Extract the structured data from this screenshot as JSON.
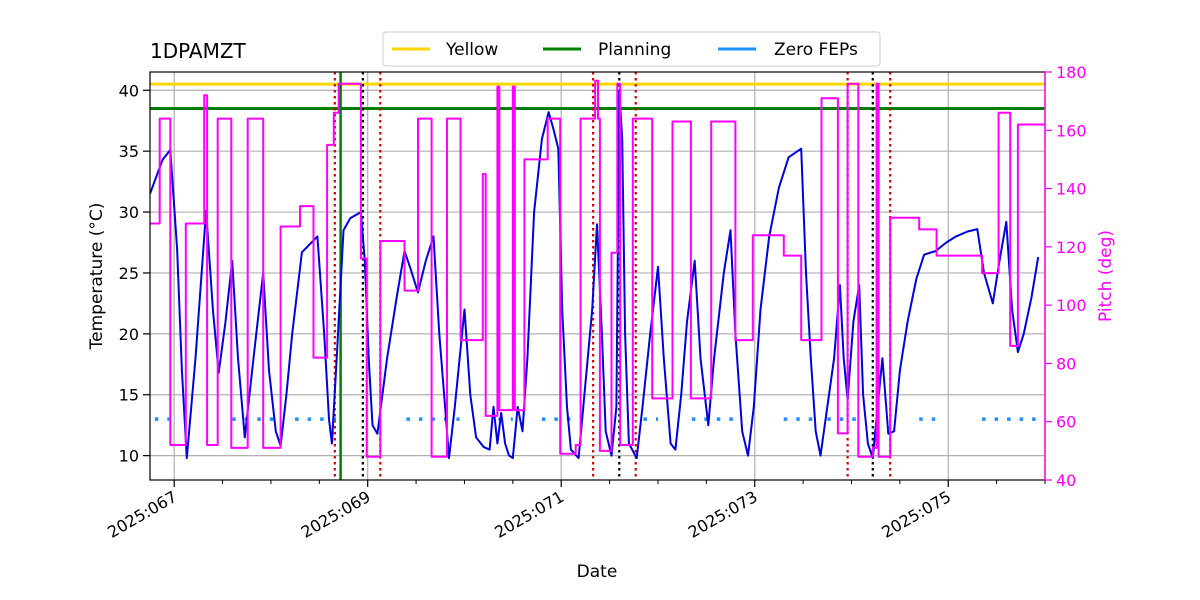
{
  "chart_data": {
    "type": "line",
    "title": "1DPAMZT",
    "xlabel": "Date",
    "ylabel_left": "Temperature ($^\\circ$C)",
    "ylabel_left_display": "Temperature (°C)",
    "ylabel_right": "Pitch (deg)",
    "xlim_day": [
      66.75,
      76.0
    ],
    "ylim_left": [
      8.0,
      41.5
    ],
    "ylim_right": [
      40,
      180
    ],
    "x_ticks": [
      {
        "day": 67,
        "label": "2025:067"
      },
      {
        "day": 69,
        "label": "2025:069"
      },
      {
        "day": 71,
        "label": "2025:071"
      },
      {
        "day": 73,
        "label": "2025:073"
      },
      {
        "day": 75,
        "label": "2025:075"
      }
    ],
    "y_left_ticks": [
      10,
      15,
      20,
      25,
      30,
      35,
      40
    ],
    "y_right_ticks": [
      40,
      60,
      80,
      100,
      120,
      140,
      160,
      180
    ],
    "grid": true,
    "legend_position": "top-center",
    "legend": [
      {
        "name": "Yellow",
        "color": "#ffd700",
        "style": "solid"
      },
      {
        "name": "Planning",
        "color": "#008000",
        "style": "solid"
      },
      {
        "name": "Zero FEPs",
        "color": "#1e90ff",
        "style": "solid"
      }
    ],
    "hlines": [
      {
        "name": "Yellow",
        "value": 40.5,
        "color": "#ffd700"
      },
      {
        "name": "Planning",
        "value": 38.5,
        "color": "#008000"
      }
    ],
    "zero_feps_level": 13.0,
    "zero_feps_segments": [
      [
        66.8,
        66.95
      ],
      [
        67.6,
        68.1
      ],
      [
        68.25,
        68.75
      ],
      [
        69.4,
        69.95
      ],
      [
        70.35,
        70.5
      ],
      [
        70.8,
        71.1
      ],
      [
        71.85,
        72.0
      ],
      [
        72.35,
        72.85
      ],
      [
        73.3,
        73.6
      ],
      [
        73.75,
        74.05
      ],
      [
        74.7,
        74.9
      ],
      [
        75.35,
        75.95
      ]
    ],
    "vlines": [
      {
        "day": 68.66,
        "color": "#d00000",
        "style": "dotted"
      },
      {
        "day": 68.72,
        "color": "#008000",
        "style": "solid"
      },
      {
        "day": 68.95,
        "color": "#000000",
        "style": "dotted"
      },
      {
        "day": 69.13,
        "color": "#d00000",
        "style": "dotted"
      },
      {
        "day": 71.33,
        "color": "#d00000",
        "style": "dotted"
      },
      {
        "day": 71.6,
        "color": "#000000",
        "style": "dotted"
      },
      {
        "day": 71.77,
        "color": "#d00000",
        "style": "dotted"
      },
      {
        "day": 73.96,
        "color": "#d00000",
        "style": "dotted"
      },
      {
        "day": 74.22,
        "color": "#000000",
        "style": "dotted"
      },
      {
        "day": 74.4,
        "color": "#d00000",
        "style": "dotted"
      }
    ],
    "series": [
      {
        "name": "1DPAMZT",
        "axis": "left",
        "color": "#0000dd",
        "points": [
          [
            66.75,
            31.5
          ],
          [
            66.88,
            34.3
          ],
          [
            66.96,
            35.1
          ],
          [
            67.03,
            27
          ],
          [
            67.08,
            17
          ],
          [
            67.13,
            9.8
          ],
          [
            67.22,
            18
          ],
          [
            67.33,
            30.1
          ],
          [
            67.4,
            22
          ],
          [
            67.46,
            16.8
          ],
          [
            67.53,
            21
          ],
          [
            67.6,
            26
          ],
          [
            67.66,
            18
          ],
          [
            67.73,
            11.5
          ],
          [
            67.82,
            18
          ],
          [
            67.92,
            25
          ],
          [
            67.98,
            17
          ],
          [
            68.05,
            12
          ],
          [
            68.1,
            10.8
          ],
          [
            68.16,
            15
          ],
          [
            68.22,
            20
          ],
          [
            68.32,
            26.7
          ],
          [
            68.48,
            28
          ],
          [
            68.55,
            20
          ],
          [
            68.6,
            13
          ],
          [
            68.63,
            11
          ],
          [
            68.68,
            18
          ],
          [
            68.75,
            28.5
          ],
          [
            68.82,
            29.5
          ],
          [
            68.93,
            30
          ],
          [
            68.97,
            26
          ],
          [
            69.01,
            18
          ],
          [
            69.05,
            12.5
          ],
          [
            69.1,
            11.8
          ],
          [
            69.2,
            18
          ],
          [
            69.3,
            23
          ],
          [
            69.38,
            26.8
          ],
          [
            69.44,
            25.4
          ],
          [
            69.52,
            23.4
          ],
          [
            69.6,
            26
          ],
          [
            69.68,
            28
          ],
          [
            69.74,
            20
          ],
          [
            69.8,
            14
          ],
          [
            69.84,
            9.8
          ],
          [
            69.9,
            14
          ],
          [
            70.0,
            22
          ],
          [
            70.06,
            15
          ],
          [
            70.12,
            11.5
          ],
          [
            70.2,
            10.7
          ],
          [
            70.26,
            10.5
          ],
          [
            70.3,
            14
          ],
          [
            70.34,
            11
          ],
          [
            70.38,
            13.5
          ],
          [
            70.42,
            11
          ],
          [
            70.46,
            10
          ],
          [
            70.5,
            9.8
          ],
          [
            70.55,
            14
          ],
          [
            70.6,
            12
          ],
          [
            70.65,
            18
          ],
          [
            70.72,
            30
          ],
          [
            70.8,
            36
          ],
          [
            70.87,
            38.2
          ],
          [
            70.92,
            36.8
          ],
          [
            70.97,
            35.2
          ],
          [
            71.01,
            22
          ],
          [
            71.06,
            14
          ],
          [
            71.1,
            10.5
          ],
          [
            71.18,
            9.8
          ],
          [
            71.24,
            15
          ],
          [
            71.32,
            22
          ],
          [
            71.37,
            29
          ],
          [
            71.42,
            20
          ],
          [
            71.46,
            12
          ],
          [
            71.52,
            10
          ],
          [
            71.57,
            14
          ],
          [
            71.6,
            40
          ],
          [
            71.63,
            36
          ],
          [
            71.66,
            20
          ],
          [
            71.7,
            11
          ],
          [
            71.78,
            9.8
          ],
          [
            71.84,
            14
          ],
          [
            71.92,
            20
          ],
          [
            72.0,
            25.5
          ],
          [
            72.06,
            18
          ],
          [
            72.13,
            11
          ],
          [
            72.18,
            10.5
          ],
          [
            72.24,
            15
          ],
          [
            72.3,
            21
          ],
          [
            72.38,
            26
          ],
          [
            72.44,
            18
          ],
          [
            72.52,
            12.5
          ],
          [
            72.58,
            18
          ],
          [
            72.68,
            25
          ],
          [
            72.75,
            28.5
          ],
          [
            72.8,
            20
          ],
          [
            72.87,
            12
          ],
          [
            72.93,
            10
          ],
          [
            72.99,
            14
          ],
          [
            73.06,
            22
          ],
          [
            73.15,
            28
          ],
          [
            73.25,
            32
          ],
          [
            73.35,
            34.5
          ],
          [
            73.48,
            35.2
          ],
          [
            73.53,
            25
          ],
          [
            73.58,
            18
          ],
          [
            73.63,
            12
          ],
          [
            73.68,
            10
          ],
          [
            73.75,
            14
          ],
          [
            73.82,
            18
          ],
          [
            73.88,
            24
          ],
          [
            73.92,
            18
          ],
          [
            73.96,
            14.6
          ],
          [
            74.02,
            21
          ],
          [
            74.08,
            24
          ],
          [
            74.12,
            15
          ],
          [
            74.17,
            11
          ],
          [
            74.22,
            9.8
          ],
          [
            74.27,
            14
          ],
          [
            74.32,
            18
          ],
          [
            74.38,
            11.8
          ],
          [
            74.44,
            12
          ],
          [
            74.5,
            17
          ],
          [
            74.58,
            21
          ],
          [
            74.67,
            24.5
          ],
          [
            74.75,
            26.5
          ],
          [
            74.87,
            26.8
          ],
          [
            74.98,
            27.5
          ],
          [
            75.08,
            28
          ],
          [
            75.2,
            28.4
          ],
          [
            75.3,
            28.6
          ],
          [
            75.37,
            25
          ],
          [
            75.46,
            22.5
          ],
          [
            75.53,
            26
          ],
          [
            75.6,
            29.2
          ],
          [
            75.66,
            22
          ],
          [
            75.72,
            18.5
          ],
          [
            75.78,
            20
          ],
          [
            75.86,
            23
          ],
          [
            75.93,
            26.3
          ]
        ]
      },
      {
        "name": "Pitch",
        "axis": "right",
        "color": "#ff00ff",
        "points": [
          [
            66.75,
            128
          ],
          [
            66.85,
            128
          ],
          [
            66.85,
            164
          ],
          [
            66.96,
            164
          ],
          [
            66.96,
            52
          ],
          [
            67.12,
            52
          ],
          [
            67.12,
            128
          ],
          [
            67.31,
            128
          ],
          [
            67.31,
            172
          ],
          [
            67.34,
            172
          ],
          [
            67.34,
            52
          ],
          [
            67.45,
            52
          ],
          [
            67.45,
            164
          ],
          [
            67.59,
            164
          ],
          [
            67.59,
            51
          ],
          [
            67.76,
            51
          ],
          [
            67.76,
            164
          ],
          [
            67.92,
            164
          ],
          [
            67.92,
            51
          ],
          [
            68.1,
            51
          ],
          [
            68.1,
            127
          ],
          [
            68.3,
            127
          ],
          [
            68.3,
            134
          ],
          [
            68.44,
            134
          ],
          [
            68.44,
            82
          ],
          [
            68.58,
            82
          ],
          [
            68.58,
            155
          ],
          [
            68.65,
            155
          ],
          [
            68.65,
            166
          ],
          [
            68.7,
            166
          ],
          [
            68.7,
            176
          ],
          [
            68.93,
            176
          ],
          [
            68.93,
            116
          ],
          [
            68.99,
            116
          ],
          [
            68.99,
            48
          ],
          [
            69.13,
            48
          ],
          [
            69.13,
            122
          ],
          [
            69.38,
            122
          ],
          [
            69.38,
            105
          ],
          [
            69.52,
            105
          ],
          [
            69.52,
            164
          ],
          [
            69.66,
            164
          ],
          [
            69.66,
            48
          ],
          [
            69.82,
            48
          ],
          [
            69.82,
            164
          ],
          [
            69.96,
            164
          ],
          [
            69.96,
            88
          ],
          [
            70.19,
            88
          ],
          [
            70.19,
            145
          ],
          [
            70.22,
            145
          ],
          [
            70.22,
            62
          ],
          [
            70.34,
            62
          ],
          [
            70.34,
            175
          ],
          [
            70.36,
            175
          ],
          [
            70.36,
            64
          ],
          [
            70.5,
            64
          ],
          [
            70.5,
            175
          ],
          [
            70.52,
            175
          ],
          [
            70.52,
            64
          ],
          [
            70.62,
            64
          ],
          [
            70.62,
            150
          ],
          [
            70.86,
            150
          ],
          [
            70.86,
            164
          ],
          [
            70.99,
            164
          ],
          [
            70.99,
            49
          ],
          [
            71.15,
            49
          ],
          [
            71.15,
            52
          ],
          [
            71.2,
            52
          ],
          [
            71.2,
            164
          ],
          [
            71.35,
            164
          ],
          [
            71.35,
            177
          ],
          [
            71.38,
            177
          ],
          [
            71.38,
            164
          ],
          [
            71.4,
            164
          ],
          [
            71.4,
            50
          ],
          [
            71.52,
            50
          ],
          [
            71.52,
            118
          ],
          [
            71.58,
            118
          ],
          [
            71.58,
            176
          ],
          [
            71.61,
            176
          ],
          [
            71.61,
            52
          ],
          [
            71.74,
            52
          ],
          [
            71.74,
            164
          ],
          [
            71.94,
            164
          ],
          [
            71.94,
            68
          ],
          [
            72.15,
            68
          ],
          [
            72.15,
            163
          ],
          [
            72.34,
            163
          ],
          [
            72.34,
            68
          ],
          [
            72.55,
            68
          ],
          [
            72.55,
            163
          ],
          [
            72.8,
            163
          ],
          [
            72.8,
            88
          ],
          [
            72.98,
            88
          ],
          [
            72.98,
            124
          ],
          [
            73.3,
            124
          ],
          [
            73.3,
            117
          ],
          [
            73.48,
            117
          ],
          [
            73.48,
            88
          ],
          [
            73.69,
            88
          ],
          [
            73.69,
            171
          ],
          [
            73.86,
            171
          ],
          [
            73.86,
            56
          ],
          [
            73.96,
            56
          ],
          [
            73.96,
            176
          ],
          [
            74.07,
            176
          ],
          [
            74.07,
            48
          ],
          [
            74.22,
            48
          ],
          [
            74.22,
            51
          ],
          [
            74.26,
            51
          ],
          [
            74.26,
            176
          ],
          [
            74.28,
            176
          ],
          [
            74.28,
            48
          ],
          [
            74.4,
            48
          ],
          [
            74.4,
            130
          ],
          [
            74.7,
            130
          ],
          [
            74.7,
            126
          ],
          [
            74.88,
            126
          ],
          [
            74.88,
            117
          ],
          [
            75.35,
            117
          ],
          [
            75.35,
            111
          ],
          [
            75.52,
            111
          ],
          [
            75.52,
            166
          ],
          [
            75.64,
            166
          ],
          [
            75.64,
            86
          ],
          [
            75.72,
            86
          ],
          [
            75.72,
            162
          ],
          [
            76.0,
            162
          ]
        ]
      }
    ]
  },
  "colors": {
    "axes": "#000000",
    "grid": "#b0b0b0",
    "right_axis": "#ff00ff"
  }
}
